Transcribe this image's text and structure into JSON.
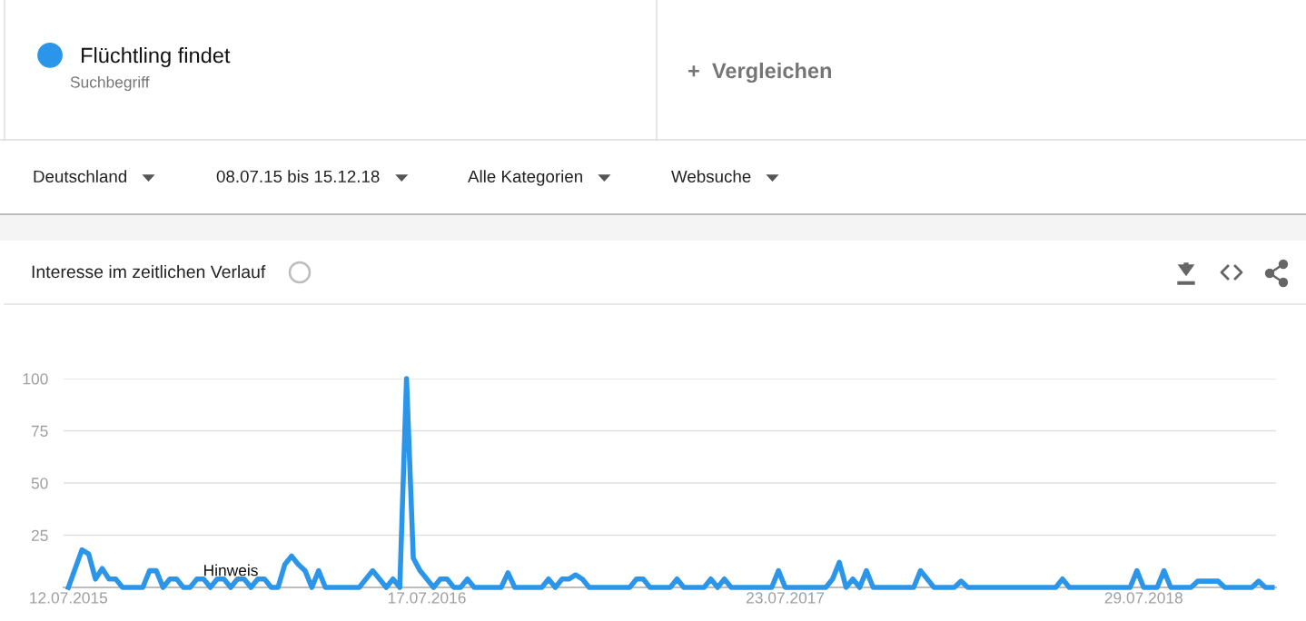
{
  "chart_data": {
    "type": "line",
    "title": "Interesse im zeitlichen Verlauf",
    "annotations": [
      "Suchbegriff",
      "+  Vergleichen",
      "Deutschland",
      "08.07.15 bis 15.12.18",
      "Alle Kategorien",
      "Websuche",
      {
        "text": "Hinweis",
        "x": "2015-12-27",
        "y": 4
      }
    ],
    "series": [
      {
        "name": "Flüchtling findet",
        "color": "#2b96e9",
        "x": [
          "2015-07-12",
          "2015-07-26",
          "2015-08-02",
          "2015-08-09",
          "2015-08-16",
          "2015-08-23",
          "2015-08-30",
          "2015-09-06",
          "2015-09-27",
          "2015-10-04",
          "2015-10-11",
          "2015-10-18",
          "2015-10-25",
          "2015-11-01",
          "2015-11-08",
          "2015-11-15",
          "2015-11-22",
          "2015-11-29",
          "2015-12-06",
          "2015-12-13",
          "2015-12-20",
          "2015-12-27",
          "2016-01-03",
          "2016-01-10",
          "2016-01-17",
          "2016-01-24",
          "2016-01-31",
          "2016-02-07",
          "2016-02-14",
          "2016-02-21",
          "2016-02-28",
          "2016-03-06",
          "2016-03-13",
          "2016-03-20",
          "2016-03-27",
          "2016-04-03",
          "2016-05-08",
          "2016-05-22",
          "2016-06-05",
          "2016-06-12",
          "2016-06-19",
          "2016-06-26",
          "2016-07-03",
          "2016-07-10",
          "2016-07-24",
          "2016-07-31",
          "2016-08-07",
          "2016-08-14",
          "2016-08-21",
          "2016-08-28",
          "2016-09-04",
          "2016-10-02",
          "2016-10-09",
          "2016-10-16",
          "2016-11-13",
          "2016-11-20",
          "2016-11-27",
          "2016-12-04",
          "2016-12-11",
          "2016-12-18",
          "2016-12-25",
          "2017-01-01",
          "2017-02-12",
          "2017-02-19",
          "2017-02-26",
          "2017-03-05",
          "2017-03-26",
          "2017-04-02",
          "2017-04-09",
          "2017-04-30",
          "2017-05-07",
          "2017-05-14",
          "2017-05-21",
          "2017-05-28",
          "2017-07-09",
          "2017-07-16",
          "2017-07-23",
          "2017-09-03",
          "2017-09-10",
          "2017-09-17",
          "2017-09-24",
          "2017-10-01",
          "2017-10-08",
          "2017-10-15",
          "2017-10-22",
          "2017-12-03",
          "2017-12-10",
          "2017-12-17",
          "2017-12-24",
          "2018-01-14",
          "2018-01-21",
          "2018-01-28",
          "2018-04-29",
          "2018-05-06",
          "2018-05-13",
          "2018-07-15",
          "2018-07-22",
          "2018-07-29",
          "2018-08-12",
          "2018-08-19",
          "2018-08-26",
          "2018-09-16",
          "2018-09-23",
          "2018-10-14",
          "2018-10-21",
          "2018-11-18",
          "2018-11-25",
          "2018-12-02",
          "2018-12-09"
        ],
        "values": [
          0,
          18,
          16,
          4,
          9,
          4,
          4,
          0,
          0,
          8,
          8,
          0,
          4,
          4,
          0,
          0,
          4,
          4,
          0,
          4,
          4,
          0,
          4,
          4,
          0,
          4,
          4,
          0,
          0,
          11,
          15,
          11,
          8,
          0,
          8,
          0,
          0,
          8,
          0,
          4,
          0,
          100,
          14,
          8,
          0,
          4,
          4,
          0,
          0,
          4,
          0,
          0,
          7,
          0,
          0,
          4,
          0,
          4,
          4,
          6,
          4,
          0,
          0,
          4,
          4,
          0,
          0,
          4,
          0,
          0,
          4,
          0,
          4,
          0,
          0,
          8,
          0,
          0,
          4,
          12,
          0,
          4,
          0,
          8,
          0,
          0,
          8,
          4,
          0,
          0,
          3,
          0,
          0,
          4,
          0,
          0,
          8,
          0,
          0,
          8,
          0,
          0,
          3,
          3,
          0,
          0,
          3,
          0,
          0
        ]
      }
    ],
    "xlim": [
      "2015-07-07",
      "2018-12-13"
    ],
    "xticks": [
      {
        "value": "2015-07-12",
        "label": "12.07.2015"
      },
      {
        "value": "2016-07-17",
        "label": "17.07.2016"
      },
      {
        "value": "2017-07-23",
        "label": "23.07.2017"
      },
      {
        "value": "2018-07-29",
        "label": "29.07.2018"
      }
    ],
    "ylim": [
      0,
      100
    ],
    "yticks": [
      {
        "value": 0,
        "label": null
      },
      25,
      50,
      75,
      100
    ],
    "grid": "y",
    "legend": "top left",
    "marker": "none",
    "line_style": "solid"
  }
}
